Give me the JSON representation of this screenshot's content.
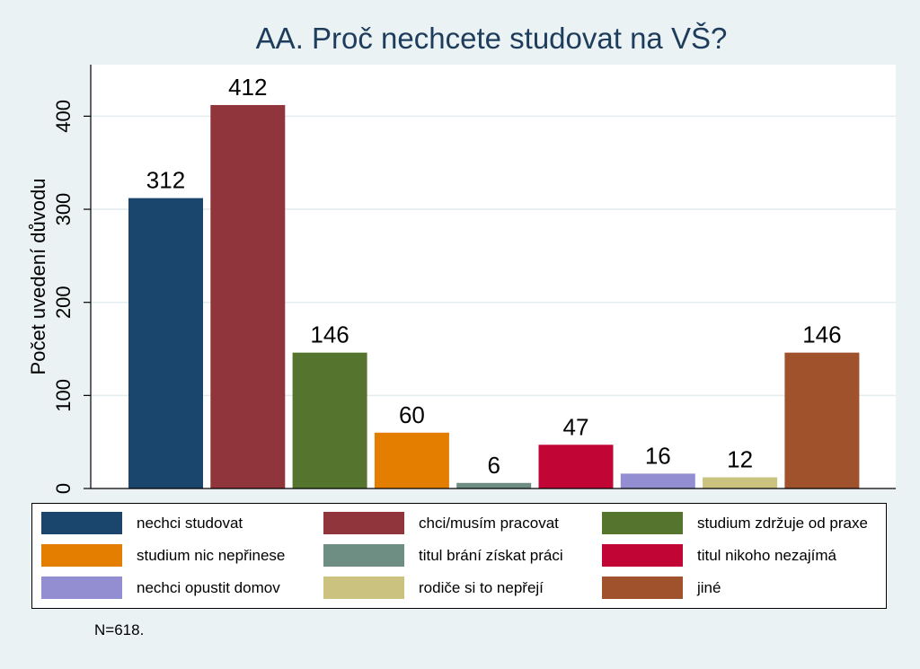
{
  "chart_data": {
    "type": "bar",
    "title": "AA. Proč nechcete studovat na VŠ?",
    "ylabel": "Počet uvedení důvodu",
    "xlabel": "",
    "ylim": [
      0,
      450
    ],
    "yticks": [
      0,
      100,
      200,
      300,
      400
    ],
    "grid": true,
    "legend_position": "bottom",
    "categories": [
      "nechci studovat",
      "chci/musím pracovat",
      "studium zdržuje od praxe",
      "studium nic nepřinese",
      "titul brání získat práci",
      "titul nikoho nezajímá",
      "nechci opustit domov",
      "rodiče si to nepřejí",
      "jiné"
    ],
    "values": [
      312,
      412,
      146,
      60,
      6,
      47,
      16,
      12,
      146
    ],
    "colors": [
      "#1a466e",
      "#90353b",
      "#55752f",
      "#e37e00",
      "#6e8e84",
      "#c10534",
      "#938dd2",
      "#cac27e",
      "#a0522d"
    ],
    "note": "N=618."
  }
}
